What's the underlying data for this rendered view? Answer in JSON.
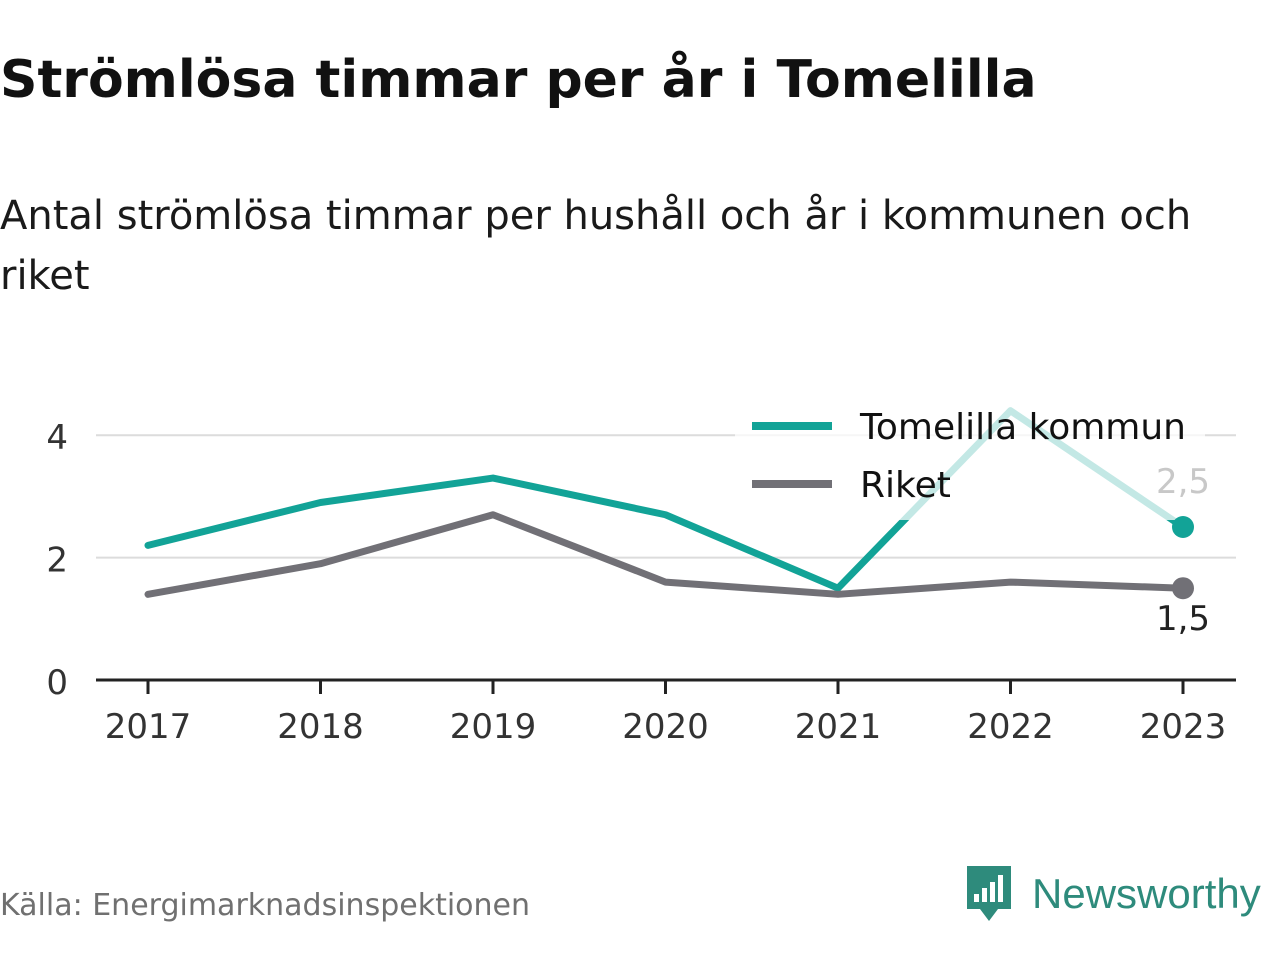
{
  "title": "Strömlösa timmar per år i Tomelilla",
  "subtitle": "Antal strömlösa timmar per hushåll och år i kommunen och riket",
  "source": "Källa: Energimarknadsinspektionen",
  "brand": {
    "name": "Newsworthy",
    "icon": "newsworthy-logo-icon",
    "color": "#2e8b7c"
  },
  "chart_data": {
    "type": "line",
    "title": "",
    "xlabel": "",
    "ylabel": "",
    "x": [
      "2017",
      "2018",
      "2019",
      "2020",
      "2021",
      "2022",
      "2023"
    ],
    "ylim": [
      0,
      4.6
    ],
    "yticks": [
      0,
      2,
      4
    ],
    "grid": true,
    "legend_position": "top-right",
    "series": [
      {
        "name": "Tomelilla kommun",
        "color": "#12a397",
        "values": [
          2.2,
          2.9,
          3.3,
          2.7,
          1.5,
          4.4,
          2.5
        ],
        "end_label": "2,5"
      },
      {
        "name": "Riket",
        "color": "#717076",
        "values": [
          1.4,
          1.9,
          2.7,
          1.6,
          1.4,
          1.6,
          1.5
        ],
        "end_label": "1,5"
      }
    ]
  }
}
